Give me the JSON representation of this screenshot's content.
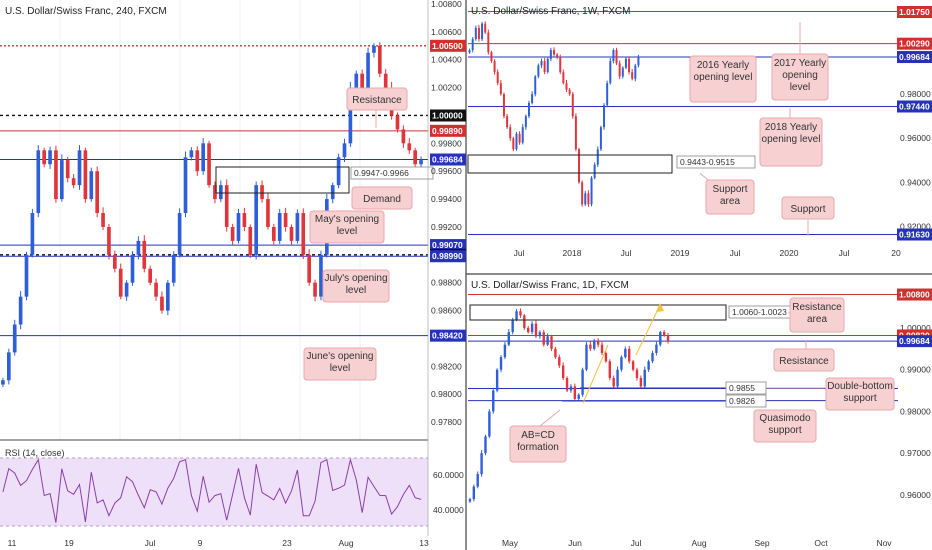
{
  "colors": {
    "up": "#2f5fd8",
    "down": "#e0353b",
    "level_red": "#d03030",
    "level_blue": "#2633b8",
    "level_black": "#111111",
    "callout_fill": "#f7d0d2",
    "callout_border": "#e8a7aa",
    "rsi_line": "#8a3ea8",
    "rsi_band": "#efe0fa",
    "annot_arrow": "#f2c23c"
  },
  "panels": {
    "h4": {
      "title": "U.S. Dollar/Swiss Franc, 240, FXCM",
      "axis_ticks": [
        "1.00800",
        "1.00600",
        "1.00400",
        "1.00200",
        "1.00000",
        "0.99800",
        "0.99600",
        "0.99400",
        "0.99200",
        "0.99000",
        "0.98800",
        "0.98600",
        "0.98400",
        "0.98200",
        "0.98000",
        "0.97800"
      ],
      "price_labels": [
        {
          "text": "1.00500",
          "color": "#d03030"
        },
        {
          "text": "1.00000",
          "color": "#111111"
        },
        {
          "text": "0.99890",
          "color": "#d03030"
        },
        {
          "text": "0.99684",
          "color": "#2633b8"
        },
        {
          "text": "0.99070",
          "color": "#2633b8"
        },
        {
          "text": "0.99000",
          "color": "#111111"
        },
        {
          "text": "0.98990",
          "color": "#2633b8"
        },
        {
          "text": "0.98420",
          "color": "#2633b8"
        }
      ],
      "zone_label": "0.9947-0.9966",
      "callouts": {
        "resistance": "Resistance",
        "demand": "Demand",
        "mays_open": "May's opening level",
        "julys_open": "July's opening level",
        "junes_open": "June's opening level"
      },
      "x_labels": [
        "11",
        "19",
        "Jul",
        "9",
        "23",
        "Aug",
        "13"
      ],
      "rsi": {
        "title": "RSI (14, close)",
        "ticks": [
          "60.0000",
          "40.0000"
        ]
      }
    },
    "weekly": {
      "title": "U.S. Dollar/Swiss Franc, 1W, FXCM",
      "price_labels": [
        {
          "text": "1.01750",
          "color": "#d03030"
        },
        {
          "text": "1.00290",
          "color": "#d03030"
        },
        {
          "text": "0.99684",
          "color": "#2633b8"
        },
        {
          "text": "0.97440",
          "color": "#2633b8"
        },
        {
          "text": "0.91630",
          "color": "#2633b8"
        }
      ],
      "axis_ticks": [
        "0.98000",
        "0.96000",
        "0.94000",
        "0.92000"
      ],
      "zone_label": "0.9443-0.9515",
      "callouts": {
        "y2016": "2016 Yearly opening level",
        "y2017": "2017 Yearly opening level",
        "y2018": "2018 Yearly opening level",
        "support_area": "Support area",
        "support": "Support"
      },
      "x_labels": [
        "Jul",
        "2018",
        "Jul",
        "2019",
        "Jul",
        "2020",
        "Jul",
        "20"
      ]
    },
    "daily": {
      "title": "U.S. Dollar/Swiss Franc, 1D, FXCM",
      "price_labels": [
        {
          "text": "1.00800",
          "color": "#d03030"
        },
        {
          "text": "0.99820",
          "color": "#d03030"
        },
        {
          "text": "0.99684",
          "color": "#2633b8"
        }
      ],
      "axis_ticks": [
        "1.00000",
        "0.99000",
        "0.98000",
        "0.97000",
        "0.96000"
      ],
      "zone_label": "1.0060-1.0023",
      "level_labels": [
        "0.9855",
        "0.9826"
      ],
      "callouts": {
        "resistance_area": "Resistance area",
        "resistance": "Resistance",
        "double_bottom": "Double-bottom support",
        "quasimodo": "Quasimodo support",
        "abcd": "AB=CD formation"
      },
      "x_labels": [
        "May",
        "Jun",
        "Jul",
        "Aug",
        "Sep",
        "Oct",
        "Nov"
      ]
    }
  },
  "chart_data": [
    {
      "type": "candlestick",
      "title": "U.S. Dollar/Swiss Franc, 240, FXCM",
      "ylim": [
        0.977,
        1.008
      ],
      "levels": [
        1.005,
        1.0,
        0.9989,
        0.99684,
        0.9907,
        0.99,
        0.9899,
        0.9842
      ],
      "zone": [
        0.9947,
        0.9966
      ],
      "close_path": [
        0.981,
        0.983,
        0.985,
        0.987,
        0.99,
        0.993,
        0.9975,
        0.9965,
        0.9975,
        0.994,
        0.9968,
        0.9955,
        0.995,
        0.9975,
        0.994,
        0.996,
        0.993,
        0.992,
        0.99,
        0.989,
        0.987,
        0.988,
        0.99,
        0.991,
        0.989,
        0.988,
        0.987,
        0.986,
        0.988,
        0.99,
        0.993,
        0.997,
        0.9975,
        0.996,
        0.998,
        0.995,
        0.994,
        0.995,
        0.992,
        0.991,
        0.993,
        0.992,
        0.99,
        0.995,
        0.994,
        0.992,
        0.991,
        0.993,
        0.992,
        0.991,
        0.993,
        0.99,
        0.988,
        0.987,
        0.99,
        0.994,
        0.995,
        0.997,
        0.998,
        1.002,
        1.003,
        1.001,
        1.0045,
        1.005,
        1.003,
        1.002,
        1.0,
        0.999,
        0.998,
        0.9975,
        0.9965,
        0.9968
      ],
      "rsi": {
        "ylim": [
          30,
          70
        ],
        "bands": [
          30,
          70
        ],
        "ticks": [
          60,
          40
        ]
      }
    },
    {
      "type": "candlestick",
      "title": "U.S. Dollar/Swiss Franc, 1W, FXCM",
      "ylim": [
        0.912,
        1.02
      ],
      "levels": [
        1.0175,
        1.0029,
        0.99684,
        0.9744,
        0.9163
      ],
      "zone": [
        0.9443,
        0.9515
      ],
      "close_path": [
        1.0,
        1.005,
        1.01,
        1.005,
        1.012,
        1.008,
        0.999,
        0.995,
        0.99,
        0.985,
        0.98,
        0.97,
        0.965,
        0.96,
        0.955,
        0.962,
        0.958,
        0.965,
        0.97,
        0.976,
        0.98,
        0.988,
        0.993,
        0.995,
        0.99,
        0.996,
        1.0,
        0.998,
        0.997,
        0.99,
        0.985,
        0.982,
        0.98,
        0.97,
        0.955,
        0.94,
        0.93,
        0.935,
        0.93,
        0.942,
        0.948,
        0.955,
        0.965,
        0.975,
        0.985,
        0.995,
        1.0,
        0.994,
        0.988,
        0.992,
        0.996,
        0.99,
        0.987,
        0.993,
        0.9968
      ]
    },
    {
      "type": "candlestick",
      "title": "U.S. Dollar/Swiss Franc, 1D, FXCM",
      "ylim": [
        0.954,
        1.011
      ],
      "levels": [
        1.008,
        0.9982,
        0.99684,
        0.9855,
        0.9826
      ],
      "zone": [
        1.0023,
        1.006
      ],
      "close_path": [
        0.959,
        0.962,
        0.965,
        0.97,
        0.974,
        0.98,
        0.985,
        0.99,
        0.993,
        0.996,
        0.999,
        1.002,
        1.004,
        1.003,
        1.0,
        0.999,
        1.001,
        0.998,
        0.999,
        0.996,
        0.998,
        0.995,
        0.993,
        0.991,
        0.988,
        0.985,
        0.986,
        0.983,
        0.984,
        0.99,
        0.996,
        0.995,
        0.997,
        0.996,
        0.994,
        0.992,
        0.988,
        0.986,
        0.99,
        0.993,
        0.995,
        0.992,
        0.99,
        0.988,
        0.986,
        0.99,
        0.992,
        0.994,
        0.996,
        0.999,
        0.9982,
        0.9968
      ]
    }
  ]
}
